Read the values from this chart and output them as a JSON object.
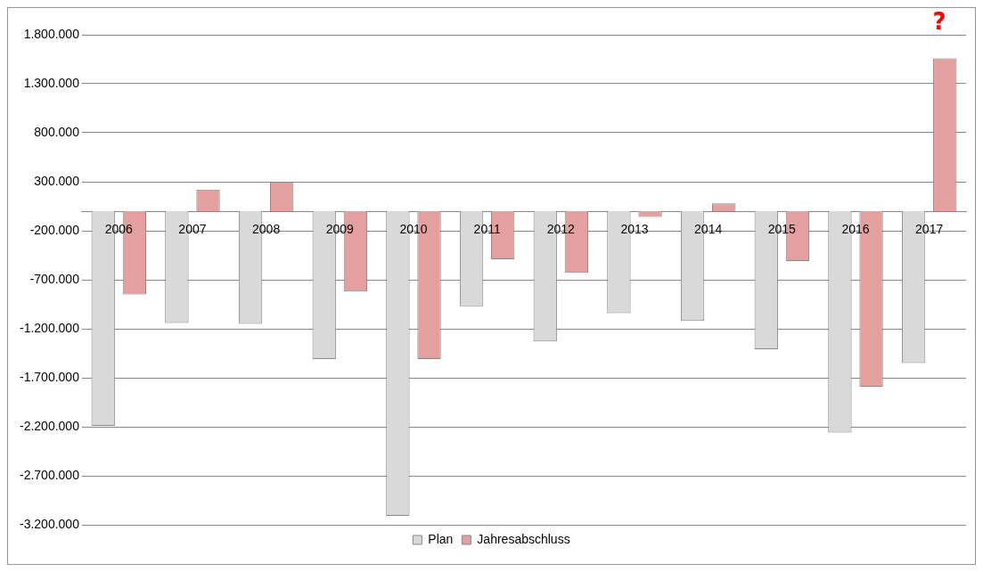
{
  "chart_data": {
    "type": "bar",
    "categories": [
      "2006",
      "2007",
      "2008",
      "2009",
      "2010",
      "2011",
      "2012",
      "2013",
      "2014",
      "2015",
      "2016",
      "2017"
    ],
    "series": [
      {
        "name": "Plan",
        "color": "#d9d9d9",
        "values": [
          -2190000,
          -1140000,
          -1150000,
          -1510000,
          -3110000,
          -970000,
          -1330000,
          -1040000,
          -1120000,
          -1410000,
          -2260000,
          -1550000
        ]
      },
      {
        "name": "Jahresabschluss",
        "color": "#e3a09e",
        "values": [
          -850000,
          220000,
          300000,
          -820000,
          -1510000,
          -490000,
          -630000,
          -60000,
          80000,
          -510000,
          -1790000,
          1560000
        ]
      }
    ],
    "ylim": [
      -3200000,
      1800000
    ],
    "yticks": [
      {
        "value": -3200000,
        "label": "-3.200.000"
      },
      {
        "value": -2700000,
        "label": "-2.700.000"
      },
      {
        "value": -2200000,
        "label": "-2.200.000"
      },
      {
        "value": -1700000,
        "label": "-1.700.000"
      },
      {
        "value": -1200000,
        "label": "-1.200.000"
      },
      {
        "value": -700000,
        "label": "-700.000"
      },
      {
        "value": -200000,
        "label": "-200.000"
      },
      {
        "value": 300000,
        "label": "300.000"
      },
      {
        "value": 800000,
        "label": "800.000"
      },
      {
        "value": 1300000,
        "label": "1.300.000"
      },
      {
        "value": 1800000,
        "label": "1.800.000"
      }
    ],
    "annotations": [
      "?"
    ],
    "grid": "y",
    "legend": "bottom"
  }
}
